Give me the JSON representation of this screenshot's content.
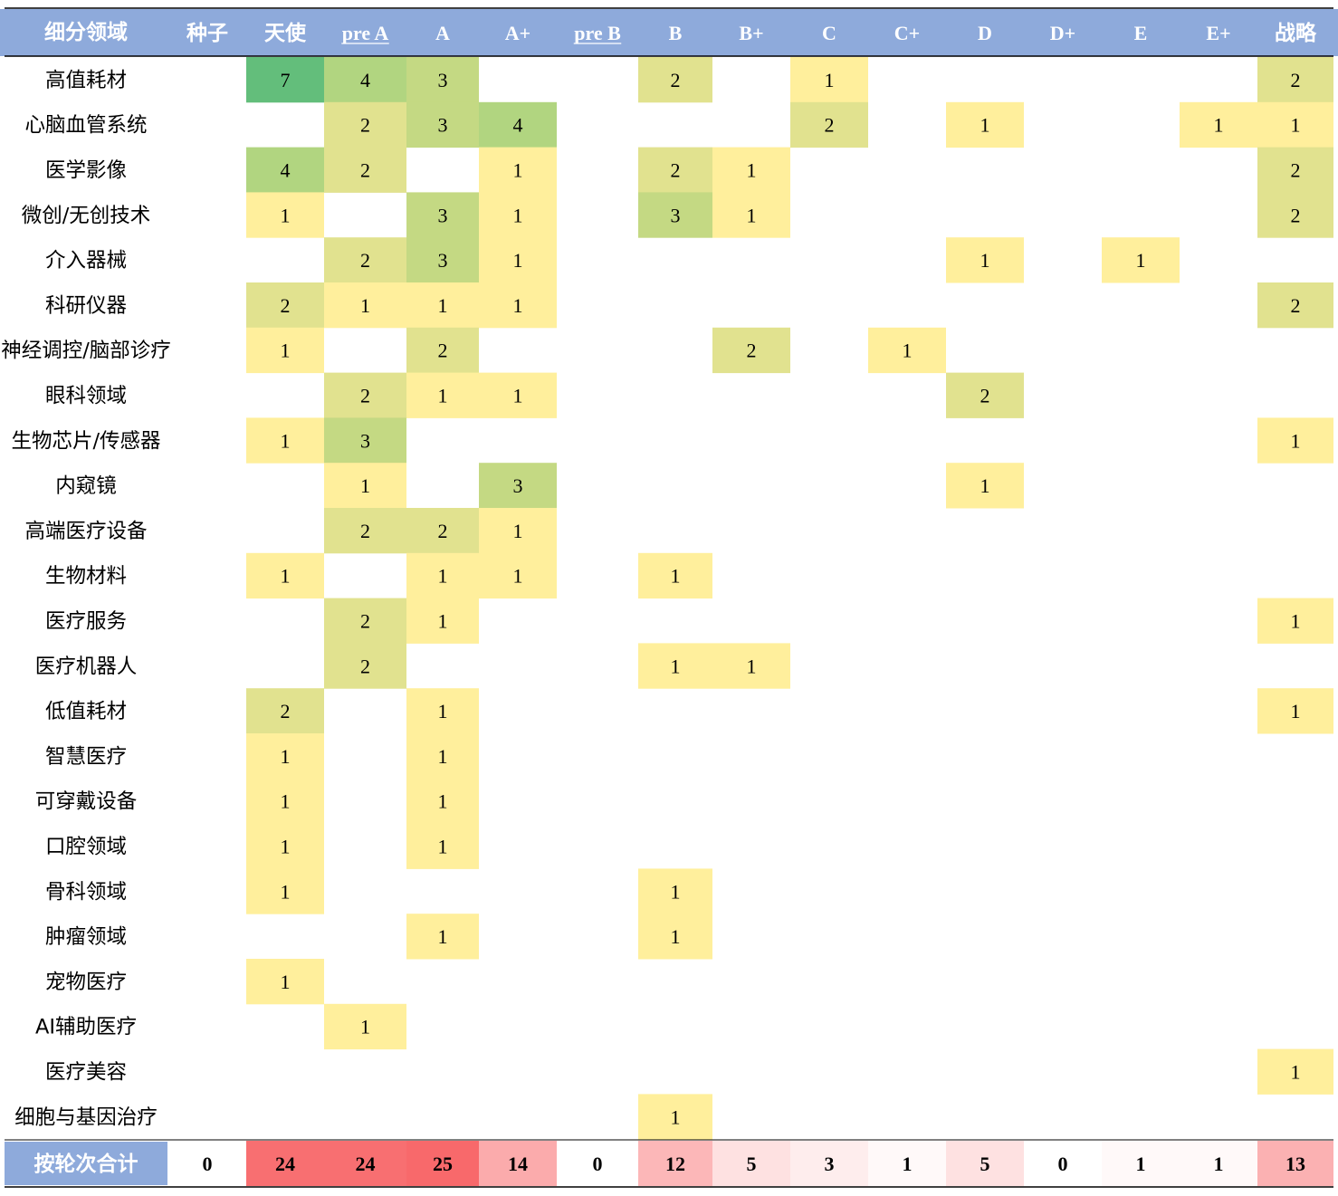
{
  "chart_data": {
    "type": "heatmap",
    "corner_label": "细分领域",
    "columns": [
      "种子",
      "天使",
      "pre A",
      "A",
      "A+",
      "pre B",
      "B",
      "B+",
      "C",
      "C+",
      "D",
      "D+",
      "E",
      "E+",
      "战略"
    ],
    "rows": [
      "高值耗材",
      "心脑血管系统",
      "医学影像",
      "微创/无创技术",
      "介入器械",
      "科研仪器",
      "神经调控/脑部诊疗",
      "眼科领域",
      "生物芯片/传感器",
      "内窥镜",
      "高端医疗设备",
      "生物材料",
      "医疗服务",
      "医疗机器人",
      "低值耗材",
      "智慧医疗",
      "可穿戴设备",
      "口腔领域",
      "骨科领域",
      "肿瘤领域",
      "宠物医疗",
      "AI辅助医疗",
      "医疗美容",
      "细胞与基因治疗"
    ],
    "values": [
      [
        null,
        7,
        4,
        3,
        null,
        null,
        2,
        null,
        1,
        null,
        null,
        null,
        null,
        null,
        2
      ],
      [
        null,
        null,
        2,
        3,
        4,
        null,
        null,
        null,
        2,
        null,
        1,
        null,
        null,
        1,
        1
      ],
      [
        null,
        4,
        2,
        null,
        1,
        null,
        2,
        1,
        null,
        null,
        null,
        null,
        null,
        null,
        2
      ],
      [
        null,
        1,
        null,
        3,
        1,
        null,
        3,
        1,
        null,
        null,
        null,
        null,
        null,
        null,
        2
      ],
      [
        null,
        null,
        2,
        3,
        1,
        null,
        null,
        null,
        null,
        null,
        1,
        null,
        1,
        null,
        null
      ],
      [
        null,
        2,
        1,
        1,
        1,
        null,
        null,
        null,
        null,
        null,
        null,
        null,
        null,
        null,
        2
      ],
      [
        null,
        1,
        null,
        2,
        null,
        null,
        null,
        2,
        null,
        1,
        null,
        null,
        null,
        null,
        null
      ],
      [
        null,
        null,
        2,
        1,
        1,
        null,
        null,
        null,
        null,
        null,
        2,
        null,
        null,
        null,
        null
      ],
      [
        null,
        1,
        3,
        null,
        null,
        null,
        null,
        null,
        null,
        null,
        null,
        null,
        null,
        null,
        1
      ],
      [
        null,
        null,
        1,
        null,
        3,
        null,
        null,
        null,
        null,
        null,
        1,
        null,
        null,
        null,
        null
      ],
      [
        null,
        null,
        2,
        2,
        1,
        null,
        null,
        null,
        null,
        null,
        null,
        null,
        null,
        null,
        null
      ],
      [
        null,
        1,
        null,
        1,
        1,
        null,
        1,
        null,
        null,
        null,
        null,
        null,
        null,
        null,
        null
      ],
      [
        null,
        null,
        2,
        1,
        null,
        null,
        null,
        null,
        null,
        null,
        null,
        null,
        null,
        null,
        1
      ],
      [
        null,
        null,
        2,
        null,
        null,
        null,
        1,
        1,
        null,
        null,
        null,
        null,
        null,
        null,
        null
      ],
      [
        null,
        2,
        null,
        1,
        null,
        null,
        null,
        null,
        null,
        null,
        null,
        null,
        null,
        null,
        1
      ],
      [
        null,
        1,
        null,
        1,
        null,
        null,
        null,
        null,
        null,
        null,
        null,
        null,
        null,
        null,
        null
      ],
      [
        null,
        1,
        null,
        1,
        null,
        null,
        null,
        null,
        null,
        null,
        null,
        null,
        null,
        null,
        null
      ],
      [
        null,
        1,
        null,
        1,
        null,
        null,
        null,
        null,
        null,
        null,
        null,
        null,
        null,
        null,
        null
      ],
      [
        null,
        1,
        null,
        null,
        null,
        null,
        1,
        null,
        null,
        null,
        null,
        null,
        null,
        null,
        null
      ],
      [
        null,
        null,
        null,
        1,
        null,
        null,
        1,
        null,
        null,
        null,
        null,
        null,
        null,
        null,
        null
      ],
      [
        null,
        1,
        null,
        null,
        null,
        null,
        null,
        null,
        null,
        null,
        null,
        null,
        null,
        null,
        null
      ],
      [
        null,
        null,
        1,
        null,
        null,
        null,
        null,
        null,
        null,
        null,
        null,
        null,
        null,
        null,
        null
      ],
      [
        null,
        null,
        null,
        null,
        null,
        null,
        null,
        null,
        null,
        null,
        null,
        null,
        null,
        null,
        1
      ],
      [
        null,
        null,
        null,
        null,
        null,
        null,
        1,
        null,
        null,
        null,
        null,
        null,
        null,
        null,
        null
      ]
    ],
    "totals_label": "按轮次合计",
    "totals": [
      0,
      24,
      24,
      25,
      14,
      0,
      12,
      5,
      3,
      1,
      5,
      0,
      1,
      1,
      13
    ],
    "colors": {
      "header_bg": "#8eaadb",
      "header_text": "#ffffff",
      "cell_scale": [
        "#ffef9c",
        "#e1e28f",
        "#c4d983",
        "#b1d580",
        "#63be7b"
      ],
      "total_scale": [
        "#ffffff",
        "#f8696b"
      ],
      "rule": "#000000"
    }
  }
}
